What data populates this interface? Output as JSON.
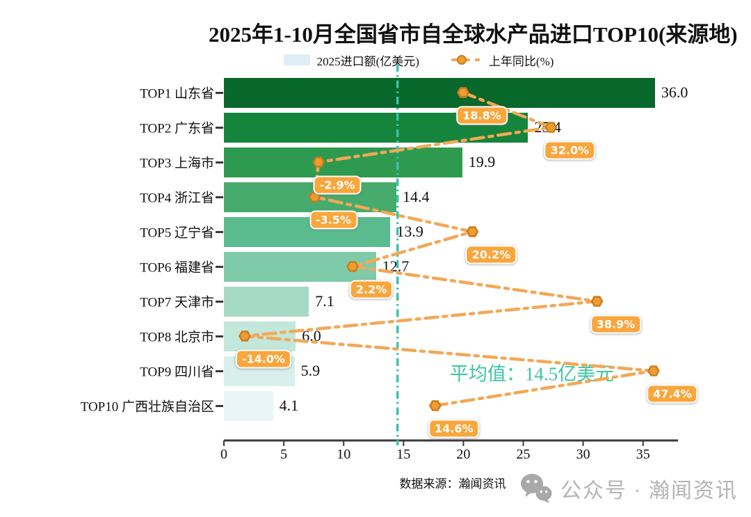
{
  "title": "2025年1-10月全国省市自全球水产品进口TOP10(来源地)",
  "legend": {
    "bar_label": "2025进口额(亿美元)",
    "line_label": "上年同比(%)"
  },
  "chart_data": {
    "type": "bar",
    "orientation": "horizontal",
    "title": "2025年1-10月全国省市自全球水产品进口TOP10(来源地)",
    "categories": [
      "TOP1 山东省",
      "TOP2 广东省",
      "TOP3 上海市",
      "TOP4 浙江省",
      "TOP5 辽宁省",
      "TOP6 福建省",
      "TOP7 天津市",
      "TOP8 北京市",
      "TOP9 四川省",
      "TOP10 广西壮族自治区"
    ],
    "series": [
      {
        "name": "2025进口额(亿美元)",
        "type": "bar",
        "values": [
          36.0,
          25.4,
          19.9,
          14.4,
          13.9,
          12.7,
          7.1,
          6.0,
          5.9,
          4.1
        ],
        "labels": [
          "36.0",
          "25.4",
          "19.9",
          "14.4",
          "13.9",
          "12.7",
          "7.1",
          "6.0",
          "5.9",
          "4.1"
        ]
      },
      {
        "name": "上年同比(%)",
        "type": "line",
        "values": [
          18.8,
          32.0,
          -2.9,
          -3.5,
          20.2,
          2.2,
          38.9,
          -14.0,
          47.4,
          14.6
        ],
        "labels": [
          "18.8%",
          "32.0%",
          "-2.9%",
          "-3.5%",
          "20.2%",
          "2.2%",
          "38.9%",
          "-14.0%",
          "47.4%",
          "14.6%"
        ]
      }
    ],
    "x_ticks": [
      "0",
      "5",
      "10",
      "15",
      "20",
      "25",
      "30",
      "35"
    ],
    "xlim": [
      0,
      37.9
    ],
    "grid": false,
    "legend_position": "top",
    "average_line": {
      "value": 14.5,
      "label": "平均值：14.5亿美元"
    },
    "colors": {
      "bars": [
        "#08672b",
        "#15843c",
        "#2d9a50",
        "#46ab6c",
        "#5abb8e",
        "#7fcaa9",
        "#a6d9c6",
        "#c2e7db",
        "#d8efeb",
        "#e9f5f6"
      ],
      "line": "#f3a855",
      "marker_fill": "#f09c33",
      "marker_stroke": "#c87f1b",
      "pct_label_bg": "#f9a63c",
      "average": "#3cc2ae",
      "average_text": "#3cc6a4",
      "axis": "#3a3a3a",
      "legend_bar_swatch": "#dfeff6",
      "watermark_gray": "#b4b4b4"
    }
  },
  "footer": {
    "source": "数据来源：瀚闻资讯",
    "watermark_text": "公众号 · 瀚闻资讯"
  }
}
